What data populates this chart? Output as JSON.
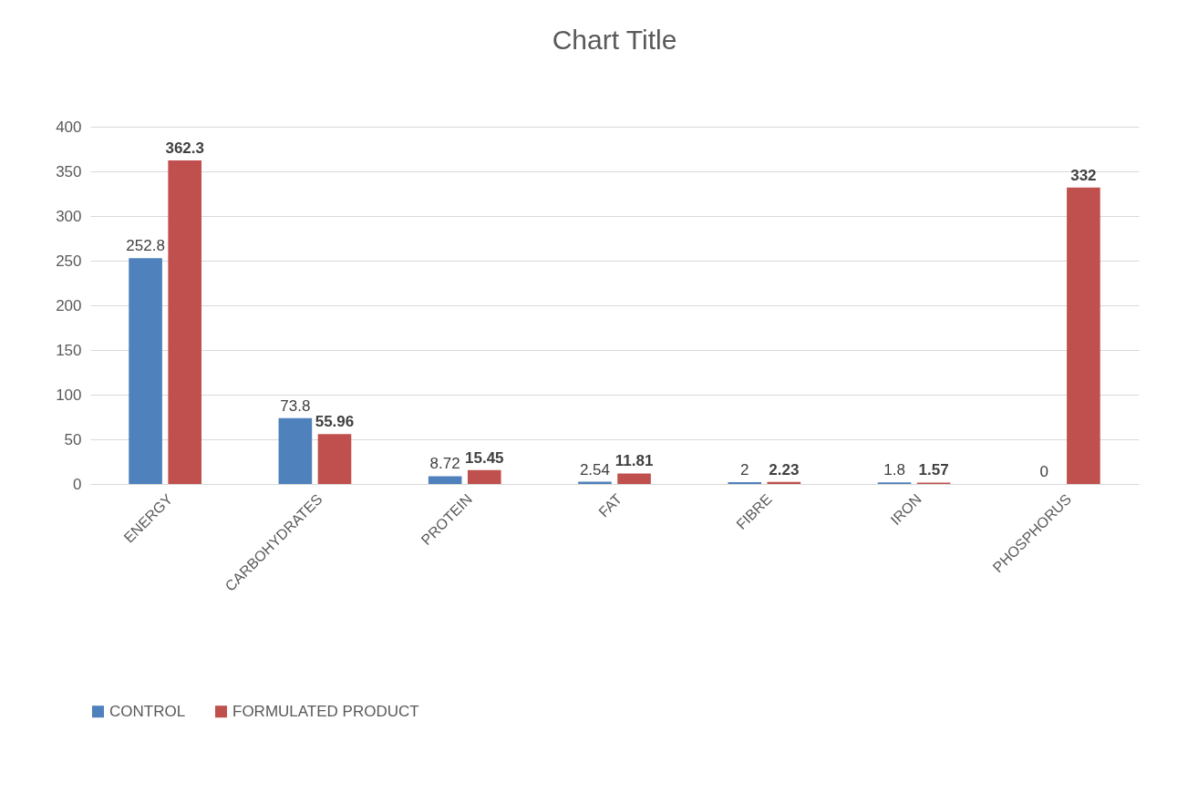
{
  "chart_data": {
    "type": "bar",
    "title": "Chart Title",
    "categories": [
      "ENERGY",
      "CARBOHYDRATES",
      "PROTEIN",
      "FAT",
      "FIBRE",
      "IRON",
      "PHOSPHORUS"
    ],
    "series": [
      {
        "name": "CONTROL",
        "color": "#4f81bd",
        "values": [
          252.8,
          73.8,
          8.72,
          2.54,
          2,
          1.8,
          0
        ]
      },
      {
        "name": "FORMULATED PRODUCT",
        "color": "#c0504d",
        "values": [
          362.3,
          55.96,
          15.45,
          11.81,
          2.23,
          1.57,
          332
        ]
      }
    ],
    "ylim": [
      0,
      400
    ],
    "yticks": [
      0,
      50,
      100,
      150,
      200,
      250,
      300,
      350,
      400
    ],
    "grid": "y",
    "legend": "bottom",
    "data_labels": true
  }
}
